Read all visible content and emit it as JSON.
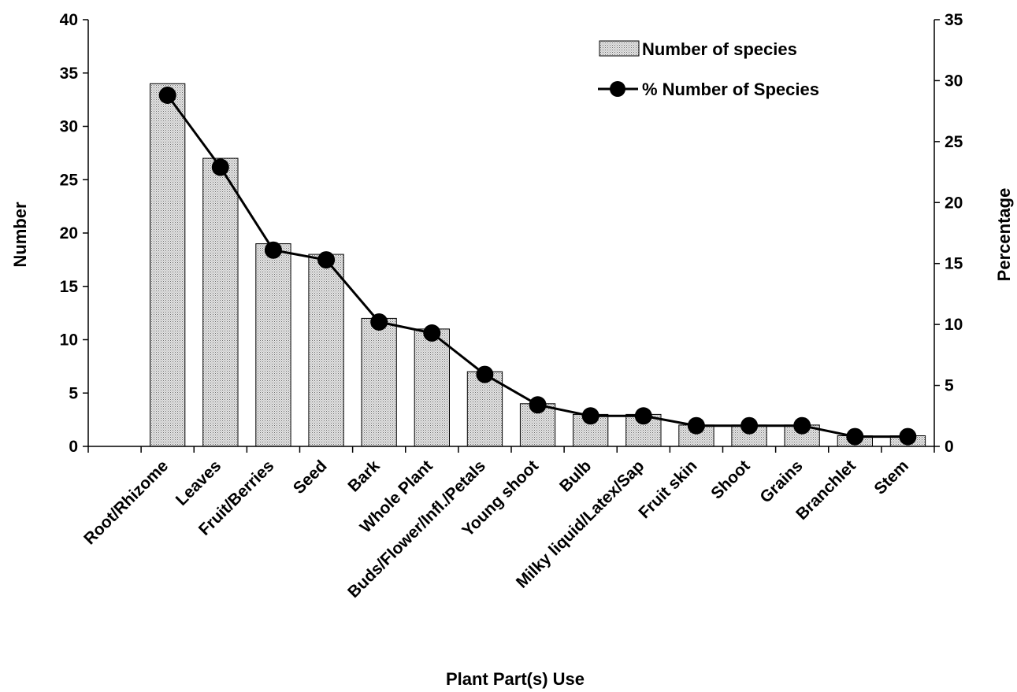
{
  "chart_data": {
    "type": "bar",
    "categories": [
      "Root/Rhizome",
      "Leaves",
      "Fruit/Berries",
      "Seed",
      "Bark",
      "Whole Plant",
      "Buds/Flower/Infl./Petals",
      "Young shoot",
      "Bulb",
      "Milky liquid/Latex/Sap",
      "Fruit skin",
      "Shoot",
      "Grains",
      "Branchlet",
      "Stem"
    ],
    "series": [
      {
        "name": "Number of species",
        "type": "bar",
        "axis": "left",
        "values": [
          34,
          27,
          19,
          18,
          12,
          11,
          7,
          4,
          3,
          3,
          2,
          2,
          2,
          1,
          1
        ]
      },
      {
        "name": "% Number of Species",
        "type": "line",
        "axis": "right",
        "values": [
          28.8,
          22.9,
          16.1,
          15.3,
          10.2,
          9.3,
          5.9,
          3.4,
          2.5,
          2.5,
          1.7,
          1.7,
          1.7,
          0.8,
          0.8
        ]
      }
    ],
    "xlabel": "Plant Part(s) Use",
    "ylabel": "Number",
    "y2label": "Percentage",
    "ylim": [
      0,
      40
    ],
    "y2lim": [
      0,
      35
    ],
    "yticks": [
      0,
      5,
      10,
      15,
      20,
      25,
      30,
      35,
      40
    ],
    "y2ticks": [
      0,
      5,
      10,
      15,
      20,
      25,
      30,
      35
    ],
    "legend": "top-right",
    "grid": false,
    "colors": {
      "bar_fill": "#d4d4d4",
      "bar_stroke": "#000000",
      "line": "#000000",
      "marker": "#000000"
    }
  }
}
